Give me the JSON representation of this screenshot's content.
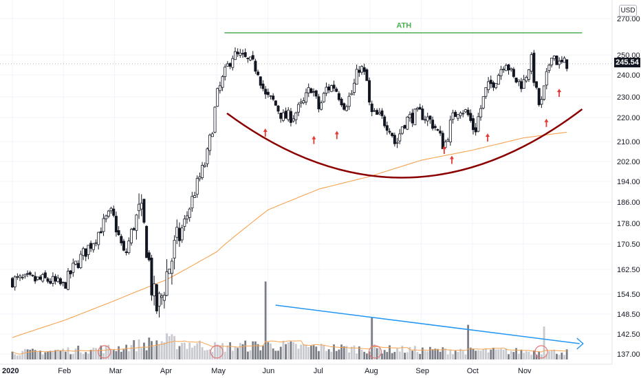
{
  "currency": "USD",
  "current_price": "245.54",
  "chart_data": {
    "type": "candlestick",
    "y_axis": {
      "scale": "log",
      "ylim": [
        135,
        280
      ],
      "ticks": [
        "270.00",
        "250.00",
        "240.00",
        "230.00",
        "220.00",
        "210.00",
        "202.00",
        "194.00",
        "186.00",
        "178.00",
        "170.50",
        "162.50",
        "154.50",
        "148.50",
        "142.50",
        "137.00"
      ],
      "position": "right"
    },
    "x_axis": {
      "ticks": [
        {
          "label": "2020",
          "bold": true,
          "month": 0
        },
        {
          "label": "Feb",
          "month": 1
        },
        {
          "label": "Mar",
          "month": 2
        },
        {
          "label": "Apr",
          "month": 3
        },
        {
          "label": "May",
          "month": 4
        },
        {
          "label": "Jun",
          "month": 5
        },
        {
          "label": "Jul",
          "month": 6
        },
        {
          "label": "Aug",
          "month": 7
        },
        {
          "label": "Sep",
          "month": 8
        },
        {
          "label": "Oct",
          "month": 9
        },
        {
          "label": "Nov",
          "month": 10
        }
      ]
    },
    "grid": true,
    "price_anchors": [
      [
        0,
        159
      ],
      [
        0.7,
        159
      ],
      [
        1.0,
        157
      ],
      [
        1.2,
        163
      ],
      [
        1.6,
        172
      ],
      [
        1.85,
        180
      ],
      [
        1.95,
        182
      ],
      [
        2.05,
        175
      ],
      [
        2.2,
        166
      ],
      [
        2.35,
        176
      ],
      [
        2.5,
        182
      ],
      [
        2.62,
        172
      ],
      [
        2.72,
        158
      ],
      [
        2.8,
        150
      ],
      [
        2.9,
        152
      ],
      [
        3.0,
        160
      ],
      [
        3.2,
        170
      ],
      [
        3.4,
        180
      ],
      [
        3.6,
        192
      ],
      [
        3.8,
        203
      ],
      [
        3.93,
        218
      ],
      [
        4.0,
        230
      ],
      [
        4.15,
        240
      ],
      [
        4.3,
        250
      ],
      [
        4.45,
        249
      ],
      [
        4.6,
        247
      ],
      [
        4.8,
        243
      ],
      [
        4.95,
        230
      ],
      [
        5.1,
        228
      ],
      [
        5.3,
        220
      ],
      [
        5.5,
        221
      ],
      [
        5.7,
        227
      ],
      [
        5.85,
        235
      ],
      [
        6.0,
        224
      ],
      [
        6.15,
        234
      ],
      [
        6.3,
        235
      ],
      [
        6.5,
        226
      ],
      [
        6.65,
        232
      ],
      [
        6.8,
        245
      ],
      [
        6.95,
        236
      ],
      [
        7.0,
        222
      ],
      [
        7.2,
        220
      ],
      [
        7.4,
        216
      ],
      [
        7.5,
        208
      ],
      [
        7.65,
        218
      ],
      [
        7.85,
        221
      ],
      [
        8.0,
        222
      ],
      [
        8.25,
        217
      ],
      [
        8.45,
        208
      ],
      [
        8.6,
        219
      ],
      [
        8.75,
        225
      ],
      [
        8.9,
        222
      ],
      [
        9.05,
        214
      ],
      [
        9.25,
        232
      ],
      [
        9.5,
        240
      ],
      [
        9.65,
        248
      ],
      [
        9.8,
        238
      ],
      [
        10.0,
        236
      ],
      [
        10.15,
        248
      ],
      [
        10.25,
        232
      ],
      [
        10.33,
        224
      ],
      [
        10.45,
        238
      ],
      [
        10.55,
        252
      ],
      [
        10.7,
        245
      ],
      [
        10.85,
        246
      ]
    ],
    "candle_count": 220,
    "moving_average": {
      "color": "#f7a24d",
      "points": [
        [
          0,
          141.5
        ],
        [
          1,
          146.5
        ],
        [
          2,
          152.5
        ],
        [
          3,
          159
        ],
        [
          4,
          168
        ],
        [
          5,
          183
        ],
        [
          6,
          191
        ],
        [
          7,
          196
        ],
        [
          8,
          202.5
        ],
        [
          9,
          206.5
        ],
        [
          10,
          211.5
        ],
        [
          10.9,
          214
        ]
      ]
    },
    "volume": {
      "profile": [
        [
          0,
          0.55
        ],
        [
          2,
          0.9
        ],
        [
          3,
          1.5
        ],
        [
          4,
          1.0
        ],
        [
          5,
          1.15
        ],
        [
          6,
          0.95
        ],
        [
          7,
          0.85
        ],
        [
          8,
          0.75
        ],
        [
          9,
          0.7
        ],
        [
          10,
          0.65
        ],
        [
          10.9,
          0.6
        ]
      ],
      "spikes": [
        {
          "month": 4.95,
          "scale": 4.5
        },
        {
          "month": 7.05,
          "scale": 2.4
        },
        {
          "month": 8.9,
          "scale": 2.0
        },
        {
          "month": 10.4,
          "scale": 1.9
        }
      ],
      "ma_color": "#f7a24d"
    },
    "annotations": [
      {
        "type": "hline",
        "label": "ATH",
        "value": 262,
        "from_month": 4.15,
        "to_month": 11.15,
        "color": "#4caf50"
      },
      {
        "type": "cup_arc",
        "color": "#8b0000",
        "from": [
          4.2,
          222
        ],
        "to": [
          11.15,
          224
        ],
        "bottom_value": 195.5
      },
      {
        "type": "trendline",
        "color": "#2196f3",
        "from_month": 5.15,
        "to_month": 11.1,
        "with_arrow": true
      },
      {
        "type": "arrows",
        "color": "#e53935",
        "points": [
          [
            4.95,
            212
          ],
          [
            5.9,
            209
          ],
          [
            6.35,
            211
          ],
          [
            8.45,
            205
          ],
          [
            8.6,
            201
          ],
          [
            9.3,
            210
          ],
          [
            10.45,
            216
          ],
          [
            10.7,
            230
          ]
        ]
      },
      {
        "type": "circles",
        "color": "#e57373",
        "months": [
          1.8,
          4.0,
          7.1,
          10.35
        ]
      }
    ]
  }
}
